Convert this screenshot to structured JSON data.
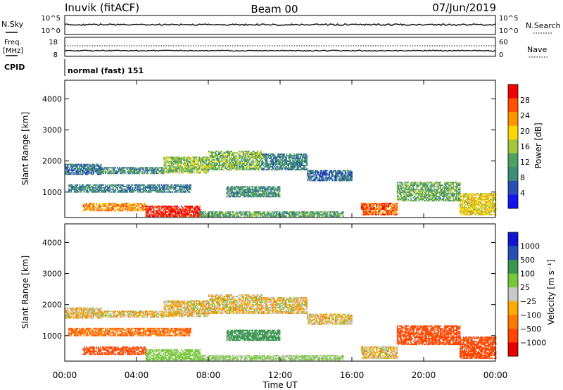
{
  "header": {
    "radar": "Inuvik (fitACF)",
    "beam": "Beam 00",
    "date": "07/Jun/2019"
  },
  "top_panels": {
    "nsky_label": "N.Sky",
    "nsky_ticks": [
      "10^5",
      "10^0"
    ],
    "nsearch_label": "N.Search",
    "nsearch_ticks": [
      "10^5",
      "10^0"
    ],
    "freq_label_line1": "Freq.",
    "freq_label_line2": "[MHz]",
    "freq_ticks": [
      "18",
      "8"
    ],
    "nave_label": "Nave",
    "nave_ticks": [
      "60",
      "0"
    ],
    "cpid_label": "CPID",
    "cpid_value": "normal (fast) 151"
  },
  "colors": {
    "power_scale": [
      "#1414f0",
      "#2850b4",
      "#3c8c78",
      "#50a064",
      "#a0c83c",
      "#ffd700",
      "#ff9600",
      "#ff5000",
      "#f00000"
    ],
    "velocity_scale": [
      "#e60000",
      "#ff4600",
      "#ff7800",
      "#ffaa00",
      "#c8c8c8",
      "#78c83c",
      "#3c9650",
      "#2850b4",
      "#1414d2"
    ]
  },
  "chart_data": [
    {
      "type": "heatmap",
      "name": "power",
      "ylabel": "Slant Range [km]",
      "xlabel": "",
      "x_ticks": [
        "00:00",
        "04:00",
        "08:00",
        "12:00",
        "16:00",
        "20:00",
        "00:00"
      ],
      "xlim": [
        0,
        24
      ],
      "y_ticks": [
        "1000",
        "2000",
        "3000",
        "4000"
      ],
      "ylim": [
        180,
        4600
      ],
      "colorbar_label": "Power [dB]",
      "colorbar_ticks": [
        "4",
        "8",
        "12",
        "16",
        "20",
        "24",
        "28"
      ],
      "colorbar_range": [
        0,
        32
      ],
      "bands": [
        {
          "t0": 0.0,
          "t1": 2.0,
          "r0": 1550,
          "r1": 1900,
          "level": 8
        },
        {
          "t0": 2.0,
          "t1": 5.5,
          "r0": 1580,
          "r1": 1780,
          "level": 10
        },
        {
          "t0": 5.5,
          "t1": 8.0,
          "r0": 1600,
          "r1": 2100,
          "level": 15
        },
        {
          "t0": 8.0,
          "t1": 11.0,
          "r0": 1700,
          "r1": 2300,
          "level": 14
        },
        {
          "t0": 11.0,
          "t1": 13.5,
          "r0": 1700,
          "r1": 2200,
          "level": 9
        },
        {
          "t0": 13.5,
          "t1": 16.0,
          "r0": 1350,
          "r1": 1700,
          "level": 7
        },
        {
          "t0": 0.2,
          "t1": 7.0,
          "r0": 980,
          "r1": 1250,
          "level": 9
        },
        {
          "t0": 9.0,
          "t1": 12.0,
          "r0": 830,
          "r1": 1180,
          "level": 10
        },
        {
          "t0": 1.0,
          "t1": 4.5,
          "r0": 380,
          "r1": 620,
          "level": 24
        },
        {
          "t0": 4.5,
          "t1": 7.5,
          "r0": 200,
          "r1": 520,
          "level": 30
        },
        {
          "t0": 7.5,
          "t1": 15.5,
          "r0": 200,
          "r1": 360,
          "level": 12
        },
        {
          "t0": 16.5,
          "t1": 18.5,
          "r0": 250,
          "r1": 650,
          "level": 26
        },
        {
          "t0": 18.5,
          "t1": 22.0,
          "r0": 700,
          "r1": 1300,
          "level": 13
        },
        {
          "t0": 22.0,
          "t1": 24.0,
          "r0": 250,
          "r1": 950,
          "level": 19
        }
      ]
    },
    {
      "type": "heatmap",
      "name": "velocity",
      "ylabel": "Slant Range [km]",
      "xlabel": "Time UT",
      "x_ticks": [
        "00:00",
        "04:00",
        "08:00",
        "12:00",
        "16:00",
        "20:00",
        "00:00"
      ],
      "xlim": [
        0,
        24
      ],
      "y_ticks": [
        "1000",
        "2000",
        "3000",
        "4000"
      ],
      "ylim": [
        180,
        4600
      ],
      "colorbar_label": "Velocity [m s⁻¹]",
      "colorbar_ticks": [
        "1000",
        "500",
        "100",
        "25",
        "−25",
        "−100",
        "−500",
        "−1000"
      ],
      "bands": [
        {
          "t0": 0.0,
          "t1": 2.0,
          "r0": 1550,
          "r1": 1900,
          "level": 0
        },
        {
          "t0": 2.0,
          "t1": 5.5,
          "r0": 1580,
          "r1": 1780,
          "level": 0
        },
        {
          "t0": 5.5,
          "t1": 8.0,
          "r0": 1600,
          "r1": 2100,
          "level": 0
        },
        {
          "t0": 8.0,
          "t1": 11.0,
          "r0": 1700,
          "r1": 2300,
          "level": 0
        },
        {
          "t0": 11.0,
          "t1": 13.5,
          "r0": 1700,
          "r1": 2200,
          "level": 0
        },
        {
          "t0": 13.5,
          "t1": 16.0,
          "r0": 1350,
          "r1": 1700,
          "level": 0
        },
        {
          "t0": 0.2,
          "t1": 7.0,
          "r0": 980,
          "r1": 1250,
          "level": -80
        },
        {
          "t0": 9.0,
          "t1": 12.0,
          "r0": 830,
          "r1": 1180,
          "level": 150
        },
        {
          "t0": 1.0,
          "t1": 4.5,
          "r0": 380,
          "r1": 620,
          "level": -150
        },
        {
          "t0": 4.5,
          "t1": 7.5,
          "r0": 200,
          "r1": 520,
          "level": 60
        },
        {
          "t0": 7.5,
          "t1": 15.5,
          "r0": 200,
          "r1": 360,
          "level": 40
        },
        {
          "t0": 16.5,
          "t1": 18.5,
          "r0": 250,
          "r1": 650,
          "level": 0
        },
        {
          "t0": 18.5,
          "t1": 22.0,
          "r0": 700,
          "r1": 1300,
          "level": -200
        },
        {
          "t0": 22.0,
          "t1": 24.0,
          "r0": 250,
          "r1": 950,
          "level": -150
        }
      ]
    }
  ]
}
